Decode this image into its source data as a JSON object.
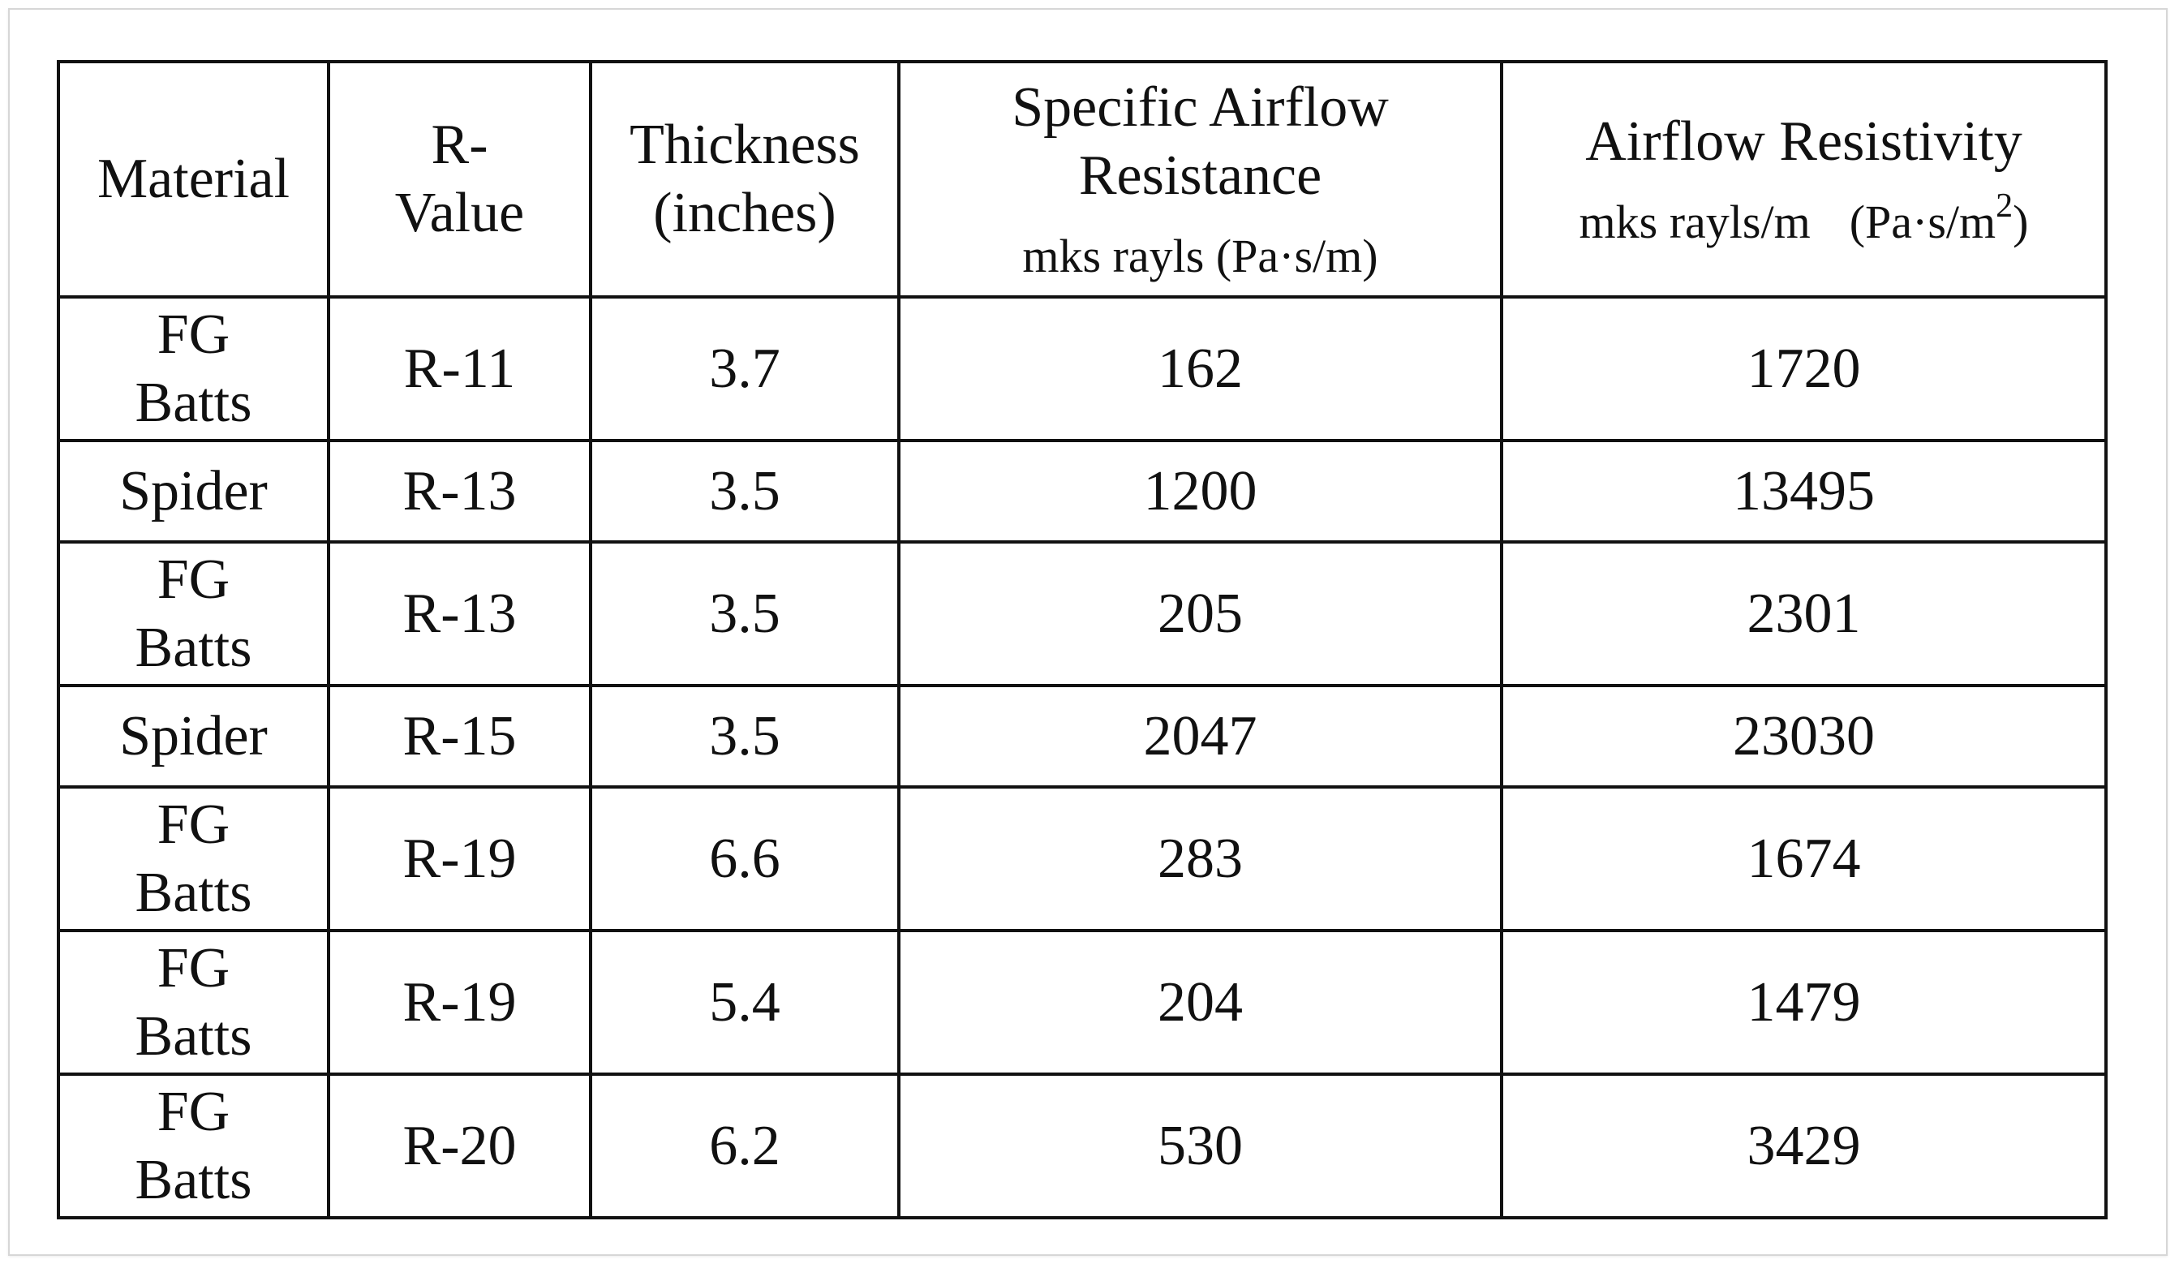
{
  "table": {
    "headers": {
      "material": "Material",
      "r_value": [
        "R-",
        "Value"
      ],
      "thickness": [
        "Thickness",
        "(inches)"
      ],
      "specific_airflow": {
        "title": [
          "Specific Airflow",
          "Resistance"
        ],
        "unit": "mks rayls (Pa·s/m)"
      },
      "airflow_resistivity": {
        "title": "Airflow Resistivity",
        "unit_a": "mks rayls/m",
        "unit_b": "(Pa·s/m",
        "unit_exp": "2",
        "unit_close": ")"
      }
    },
    "rows": [
      {
        "material": [
          "FG",
          "Batts"
        ],
        "r_value": "R-11",
        "thickness": "3.7",
        "specific_airflow_resistance": "162",
        "airflow_resistivity": "1720"
      },
      {
        "material": [
          "Spider"
        ],
        "r_value": "R-13",
        "thickness": "3.5",
        "specific_airflow_resistance": "1200",
        "airflow_resistivity": "13495"
      },
      {
        "material": [
          "FG",
          "Batts"
        ],
        "r_value": "R-13",
        "thickness": "3.5",
        "specific_airflow_resistance": "205",
        "airflow_resistivity": "2301"
      },
      {
        "material": [
          "Spider"
        ],
        "r_value": "R-15",
        "thickness": "3.5",
        "specific_airflow_resistance": "2047",
        "airflow_resistivity": "23030"
      },
      {
        "material": [
          "FG",
          "Batts"
        ],
        "r_value": "R-19",
        "thickness": "6.6",
        "specific_airflow_resistance": "283",
        "airflow_resistivity": "1674"
      },
      {
        "material": [
          "FG",
          "Batts"
        ],
        "r_value": "R-19",
        "thickness": "5.4",
        "specific_airflow_resistance": "204",
        "airflow_resistivity": "1479"
      },
      {
        "material": [
          "FG",
          "Batts"
        ],
        "r_value": "R-20",
        "thickness": "6.2",
        "specific_airflow_resistance": "530",
        "airflow_resistivity": "3429"
      }
    ]
  }
}
